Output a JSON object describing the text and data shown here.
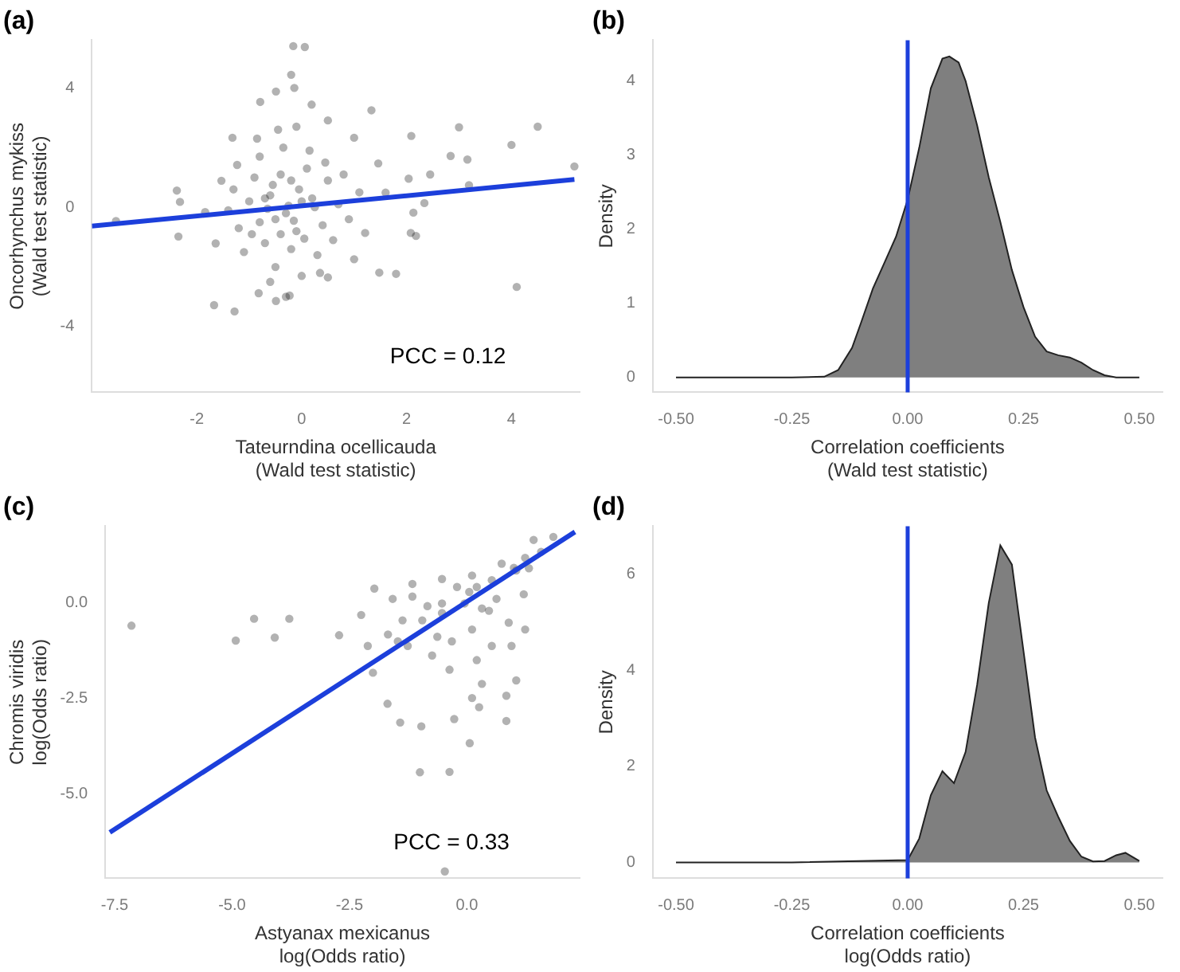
{
  "chart_data": [
    {
      "type": "scatter",
      "title": "(a)",
      "xlabel": "Tateurndina ocellicauda\n(Wald test statistic)",
      "ylabel": "Oncorhynchus mykiss\n(Wald test statistic)",
      "xlim": [
        -4,
        5.3
      ],
      "ylim": [
        -6.2,
        5.6
      ],
      "xticks": [
        -2,
        0,
        2,
        4
      ],
      "yticks": [
        -4,
        0,
        4
      ],
      "annotations": [
        "PCC = 0.12"
      ],
      "series": [
        {
          "type": "scatter",
          "marker": "circle",
          "color": "#000000",
          "x": [
            -0.16,
            0.06,
            -0.2,
            -0.14,
            -0.49,
            -0.79,
            1.33,
            2.09,
            3.0,
            4.5,
            4.0,
            5.2,
            2.84,
            3.16,
            2.45,
            2.04,
            3.19,
            2.34,
            2.13,
            2.08,
            2.18,
            1.8,
            1.48,
            4.1,
            -1.28,
            -1.67,
            -0.49,
            -2.38,
            -2.32,
            -2.35,
            -3.54,
            -1.32,
            0.19,
            0.5,
            1.0,
            1.46,
            1.6,
            1.21,
            1.0,
            0.5,
            -0.23,
            -0.82,
            -1.64,
            -1.84,
            -1.53,
            -1.23,
            -0.3,
            -0.6,
            -0.1,
            -0.8,
            0.2,
            -0.4,
            -0.2,
            -1.0,
            0.4,
            -0.7,
            0.1,
            -0.5,
            -0.9,
            0.5,
            -1.2,
            0.3,
            -0.35,
            -0.05,
            -0.65,
            -0.15,
            0.7,
            -1.1,
            0.0,
            -0.45,
            0.15,
            -0.8,
            0.6,
            -0.25,
            -0.55,
            0.05,
            -1.3,
            0.9,
            -0.7,
            -0.4,
            0.25,
            -0.95,
            0.45,
            -0.1,
            -0.6,
            0.8,
            -1.4,
            0.35,
            -0.3,
            -0.85,
            1.1,
            0.0,
            -0.5,
            -0.2
          ],
          "values": [
            5.4,
            5.37,
            4.44,
            4.0,
            3.88,
            3.53,
            3.25,
            2.39,
            2.68,
            2.7,
            2.09,
            1.37,
            1.72,
            1.6,
            1.1,
            0.96,
            0.74,
            0.14,
            -0.18,
            -0.86,
            -0.96,
            -2.23,
            -2.19,
            -2.67,
            -3.49,
            -3.28,
            -3.14,
            0.56,
            0.18,
            -0.98,
            -0.46,
            2.33,
            3.44,
            2.91,
            2.33,
            1.47,
            0.49,
            -0.86,
            -1.74,
            -2.35,
            -2.96,
            -2.88,
            -1.21,
            -0.16,
            0.89,
            1.42,
            -0.2,
            0.4,
            -0.8,
            -0.5,
            0.3,
            1.1,
            -1.4,
            0.2,
            -0.6,
            -1.2,
            1.3,
            -2.0,
            1.0,
            0.9,
            -0.7,
            -1.6,
            2.0,
            0.6,
            -0.05,
            -0.45,
            0.1,
            -1.5,
            -2.3,
            2.6,
            1.9,
            1.7,
            -1.1,
            0.05,
            0.75,
            -1.05,
            0.6,
            -0.4,
            0.3,
            -0.9,
            0.0,
            -0.9,
            1.5,
            2.7,
            -2.5,
            1.1,
            -0.1,
            -2.2,
            -3.0,
            2.3,
            0.5,
            0.2,
            -0.4,
            0.9
          ]
        },
        {
          "type": "line",
          "color": "#1c3fdb",
          "x": [
            -4,
            5.2
          ],
          "values": [
            -0.63,
            0.93
          ]
        }
      ]
    },
    {
      "type": "area",
      "title": "(b)",
      "xlabel": "Correlation coefficients\n(Wald test statistic)",
      "ylabel": "Density",
      "xlim": [
        -0.55,
        0.55
      ],
      "ylim": [
        -0.2,
        4.55
      ],
      "xticks": [
        {
          "value": -0.5,
          "label": "-0.50"
        },
        {
          "value": -0.25,
          "label": "-0.25"
        },
        {
          "value": 0,
          "label": "0.00"
        },
        {
          "value": 0.25,
          "label": "0.25"
        },
        {
          "value": 0.5,
          "label": "0.50"
        }
      ],
      "yticks": [
        0,
        1,
        2,
        3,
        4
      ],
      "color": "#7f7f7f",
      "x": [
        -0.5,
        -0.25,
        -0.18,
        -0.15,
        -0.12,
        -0.1,
        -0.075,
        -0.05,
        -0.025,
        0,
        0.025,
        0.05,
        0.075,
        0.09,
        0.11,
        0.125,
        0.15,
        0.175,
        0.2,
        0.225,
        0.25,
        0.275,
        0.3,
        0.325,
        0.35,
        0.375,
        0.4,
        0.425,
        0.45,
        0.5
      ],
      "values": [
        0,
        0,
        0.01,
        0.1,
        0.4,
        0.75,
        1.2,
        1.55,
        1.9,
        2.4,
        3.1,
        3.9,
        4.3,
        4.33,
        4.25,
        4.0,
        3.4,
        2.7,
        2.1,
        1.45,
        0.95,
        0.55,
        0.35,
        0.3,
        0.27,
        0.2,
        0.1,
        0.03,
        0,
        0
      ],
      "ref_lines": [
        {
          "axis": "x",
          "value": 0,
          "color": "#1c3fdb"
        }
      ]
    },
    {
      "type": "scatter",
      "title": "(c)",
      "xlabel": "Astyanax mexicanus\nlog(Odds ratio)",
      "ylabel": "Chromis viridis\nlog(Odds ratio)",
      "xlim": [
        -7.7,
        2.4
      ],
      "ylim": [
        -7.2,
        2.0
      ],
      "xticks": [
        {
          "value": -7.5,
          "label": "-7.5"
        },
        {
          "value": -5,
          "label": "-5.0"
        },
        {
          "value": -2.5,
          "label": "-2.5"
        },
        {
          "value": 0,
          "label": "0.0"
        }
      ],
      "yticks": [
        {
          "value": 0,
          "label": "0.0"
        },
        {
          "value": -2.5,
          "label": "-2.5"
        },
        {
          "value": -5,
          "label": "-5.0"
        }
      ],
      "annotations": [
        "PCC = 0.33"
      ],
      "series": [
        {
          "type": "scatter",
          "marker": "circle",
          "color": "#000000",
          "x": [
            -7.14,
            -4.92,
            -4.53,
            -4.09,
            -3.78,
            -2.72,
            -2.25,
            -1.97,
            -2.0,
            -1.69,
            -1.42,
            -0.97,
            -1.0,
            -0.37,
            -0.47,
            0.06,
            -0.27,
            0.84,
            1.05,
            0.84,
            1.84,
            1.42,
            1.24,
            1.0,
            0.53,
            0.11,
            -0.53,
            -1.16,
            -1.58,
            -1.16,
            -1.68,
            -1.26,
            -0.95,
            -0.53,
            -0.05,
            0.11,
            0.32,
            0.63,
            0.89,
            1.21,
            1.32,
            1.58,
            0.21,
            0.32,
            0.11,
            0.26,
            -0.37,
            -0.74,
            -0.63,
            -0.32,
            0.53,
            0.95,
            1.24,
            1.05,
            0.74,
            -0.21,
            0.05,
            0.21,
            0.47,
            -0.53,
            -0.84,
            -1.37,
            -1.47,
            -2.11
          ],
          "values": [
            -0.6,
            -0.99,
            -0.42,
            -0.91,
            -0.42,
            -0.85,
            -0.32,
            0.37,
            -1.83,
            -2.64,
            -3.13,
            -3.23,
            -4.43,
            -4.42,
            -7.02,
            -3.67,
            -3.04,
            -3.09,
            -2.03,
            -2.43,
            1.72,
            1.64,
            1.17,
            0.91,
            0.59,
            0.71,
            0.62,
            0.49,
            0.1,
            0.16,
            -0.83,
            -1.13,
            -0.46,
            -0.27,
            -0.02,
            -0.7,
            -0.15,
            0.1,
            -0.52,
            0.22,
            0.9,
            1.33,
            -1.5,
            -2.12,
            -2.49,
            -2.73,
            -1.75,
            -1.38,
            -0.89,
            -1.01,
            -1.13,
            -1.13,
            -0.7,
            0.84,
            1.02,
            0.41,
            0.28,
            0.41,
            -0.21,
            -0.02,
            -0.09,
            -0.46,
            -1.01,
            -1.13
          ]
        },
        {
          "type": "line",
          "color": "#1c3fdb",
          "x": [
            -7.6,
            2.3
          ],
          "values": [
            -6.0,
            1.85
          ]
        }
      ]
    },
    {
      "type": "area",
      "title": "(d)",
      "xlabel": "Correlation coefficients\nlog(Odds ratio)",
      "ylabel": "Density",
      "xlim": [
        -0.55,
        0.55
      ],
      "ylim": [
        -0.33,
        7.0
      ],
      "xticks": [
        {
          "value": -0.5,
          "label": "-0.50"
        },
        {
          "value": -0.25,
          "label": "-0.25"
        },
        {
          "value": 0,
          "label": "0.00"
        },
        {
          "value": 0.25,
          "label": "0.25"
        },
        {
          "value": 0.5,
          "label": "0.50"
        }
      ],
      "yticks": [
        0,
        2,
        4,
        6
      ],
      "color": "#7f7f7f",
      "x": [
        -0.5,
        -0.25,
        0,
        0.025,
        0.05,
        0.075,
        0.1,
        0.125,
        0.15,
        0.175,
        0.2,
        0.225,
        0.25,
        0.275,
        0.3,
        0.325,
        0.35,
        0.375,
        0.4,
        0.425,
        0.45,
        0.47,
        0.5
      ],
      "values": [
        0,
        0,
        0.05,
        0.5,
        1.4,
        1.9,
        1.65,
        2.3,
        3.7,
        5.4,
        6.6,
        6.2,
        4.4,
        2.6,
        1.5,
        0.95,
        0.45,
        0.12,
        0.02,
        0.03,
        0.15,
        0.2,
        0.03
      ],
      "ref_lines": [
        {
          "axis": "x",
          "value": 0,
          "color": "#1c3fdb"
        }
      ]
    }
  ]
}
